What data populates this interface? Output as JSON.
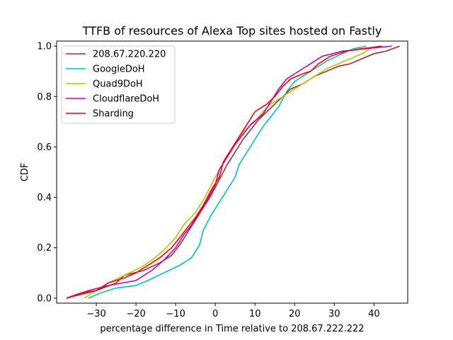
{
  "chart_data": {
    "type": "line",
    "title": "TTFB of resources of Alexa Top sites hosted on Fastly",
    "xlabel": "percentage difference in Time relative to 208.67.222.222",
    "ylabel": "CDF",
    "xlim": [
      -40,
      48.5
    ],
    "ylim": [
      -0.02,
      1.02
    ],
    "xticks": [
      -30,
      -20,
      -10,
      0,
      10,
      20,
      30,
      40
    ],
    "xtick_labels": [
      "−30",
      "−20",
      "−10",
      "0",
      "10",
      "20",
      "30",
      "40"
    ],
    "yticks": [
      0.0,
      0.2,
      0.4,
      0.6,
      0.8,
      1.0
    ],
    "ytick_labels": [
      "0.0",
      "0.2",
      "0.4",
      "0.6",
      "0.8",
      "1.0"
    ],
    "grid": false,
    "legend_position": "upper-left",
    "series": [
      {
        "name": "208.67.220.220",
        "color": "#a52a2a",
        "points": [
          [
            -37.5,
            0.0
          ],
          [
            -30,
            0.03
          ],
          [
            -25,
            0.06
          ],
          [
            -23,
            0.09
          ],
          [
            -18,
            0.11
          ],
          [
            -14,
            0.14
          ],
          [
            -11,
            0.17
          ],
          [
            -9,
            0.21
          ],
          [
            -7,
            0.26
          ],
          [
            -5,
            0.31
          ],
          [
            -3,
            0.36
          ],
          [
            -1,
            0.41
          ],
          [
            1,
            0.47
          ],
          [
            3,
            0.53
          ],
          [
            5,
            0.58
          ],
          [
            7,
            0.63
          ],
          [
            9,
            0.67
          ],
          [
            11,
            0.71
          ],
          [
            13,
            0.74
          ],
          [
            15,
            0.77
          ],
          [
            17,
            0.8
          ],
          [
            19,
            0.83
          ],
          [
            22,
            0.85
          ],
          [
            25,
            0.88
          ],
          [
            28,
            0.9
          ],
          [
            31,
            0.92
          ],
          [
            34,
            0.93
          ],
          [
            37,
            0.95
          ],
          [
            40,
            0.97
          ],
          [
            43,
            0.98
          ],
          [
            46.5,
            1.0
          ]
        ]
      },
      {
        "name": "GoogleDoH",
        "color": "#00bfbf",
        "points": [
          [
            -32,
            0.0
          ],
          [
            -29,
            0.02
          ],
          [
            -25,
            0.04
          ],
          [
            -20,
            0.05
          ],
          [
            -17,
            0.07
          ],
          [
            -13,
            0.1
          ],
          [
            -9,
            0.13
          ],
          [
            -6,
            0.16
          ],
          [
            -4,
            0.21
          ],
          [
            -3,
            0.27
          ],
          [
            -1,
            0.33
          ],
          [
            1,
            0.38
          ],
          [
            3,
            0.43
          ],
          [
            5,
            0.48
          ],
          [
            6,
            0.53
          ],
          [
            8,
            0.58
          ],
          [
            10,
            0.63
          ],
          [
            12,
            0.68
          ],
          [
            14,
            0.72
          ],
          [
            16,
            0.76
          ],
          [
            18,
            0.82
          ],
          [
            20,
            0.86
          ],
          [
            22,
            0.88
          ],
          [
            25,
            0.91
          ],
          [
            28,
            0.94
          ],
          [
            32,
            0.97
          ],
          [
            35,
            0.99
          ],
          [
            38,
            1.0
          ]
        ]
      },
      {
        "name": "Quad9DoH",
        "color": "#bfbf00",
        "points": [
          [
            -33,
            0.0
          ],
          [
            -30,
            0.03
          ],
          [
            -27,
            0.06
          ],
          [
            -23,
            0.09
          ],
          [
            -19,
            0.12
          ],
          [
            -16,
            0.15
          ],
          [
            -13,
            0.19
          ],
          [
            -10,
            0.24
          ],
          [
            -8,
            0.29
          ],
          [
            -5,
            0.34
          ],
          [
            -3,
            0.39
          ],
          [
            -1,
            0.45
          ],
          [
            1,
            0.51
          ],
          [
            3,
            0.56
          ],
          [
            5,
            0.61
          ],
          [
            7,
            0.66
          ],
          [
            10,
            0.7
          ],
          [
            12,
            0.74
          ],
          [
            14,
            0.77
          ],
          [
            17,
            0.8
          ],
          [
            19,
            0.82
          ],
          [
            22,
            0.85
          ],
          [
            25,
            0.88
          ],
          [
            28,
            0.91
          ],
          [
            31,
            0.93
          ],
          [
            34,
            0.95
          ],
          [
            37,
            0.97
          ],
          [
            39,
            0.99
          ],
          [
            41,
            1.0
          ]
        ]
      },
      {
        "name": "CloudflareDoH",
        "color": "#bf00bf",
        "points": [
          [
            -37.5,
            0.0
          ],
          [
            -32,
            0.03
          ],
          [
            -27,
            0.05
          ],
          [
            -20,
            0.07
          ],
          [
            -16,
            0.11
          ],
          [
            -13,
            0.15
          ],
          [
            -10,
            0.2
          ],
          [
            -8,
            0.25
          ],
          [
            -6,
            0.29
          ],
          [
            -4,
            0.34
          ],
          [
            -2,
            0.39
          ],
          [
            0,
            0.45
          ],
          [
            1,
            0.51
          ],
          [
            3,
            0.56
          ],
          [
            5,
            0.61
          ],
          [
            7,
            0.65
          ],
          [
            9,
            0.69
          ],
          [
            12,
            0.73
          ],
          [
            14,
            0.78
          ],
          [
            16,
            0.83
          ],
          [
            18,
            0.87
          ],
          [
            20,
            0.89
          ],
          [
            22,
            0.91
          ],
          [
            24,
            0.93
          ],
          [
            27,
            0.96
          ],
          [
            32,
            0.98
          ],
          [
            38,
            0.99
          ],
          [
            44.5,
            1.0
          ]
        ]
      },
      {
        "name": "Sharding",
        "color": "#ff0000",
        "points": [
          [
            -37.5,
            0.0
          ],
          [
            -34,
            0.02
          ],
          [
            -30,
            0.03
          ],
          [
            -27,
            0.06
          ],
          [
            -23,
            0.08
          ],
          [
            -20,
            0.1
          ],
          [
            -17,
            0.13
          ],
          [
            -14,
            0.16
          ],
          [
            -11,
            0.2
          ],
          [
            -9,
            0.24
          ],
          [
            -7,
            0.28
          ],
          [
            -5,
            0.32
          ],
          [
            -3,
            0.37
          ],
          [
            -1,
            0.43
          ],
          [
            1,
            0.48
          ],
          [
            2,
            0.54
          ],
          [
            4,
            0.59
          ],
          [
            6,
            0.64
          ],
          [
            8,
            0.69
          ],
          [
            10,
            0.74
          ],
          [
            13,
            0.77
          ],
          [
            15,
            0.8
          ],
          [
            17,
            0.84
          ],
          [
            19,
            0.87
          ],
          [
            22,
            0.89
          ],
          [
            24,
            0.9
          ],
          [
            26,
            0.93
          ],
          [
            29,
            0.96
          ],
          [
            33,
            0.98
          ],
          [
            37,
            0.99
          ],
          [
            42,
            1.0
          ]
        ]
      }
    ]
  }
}
